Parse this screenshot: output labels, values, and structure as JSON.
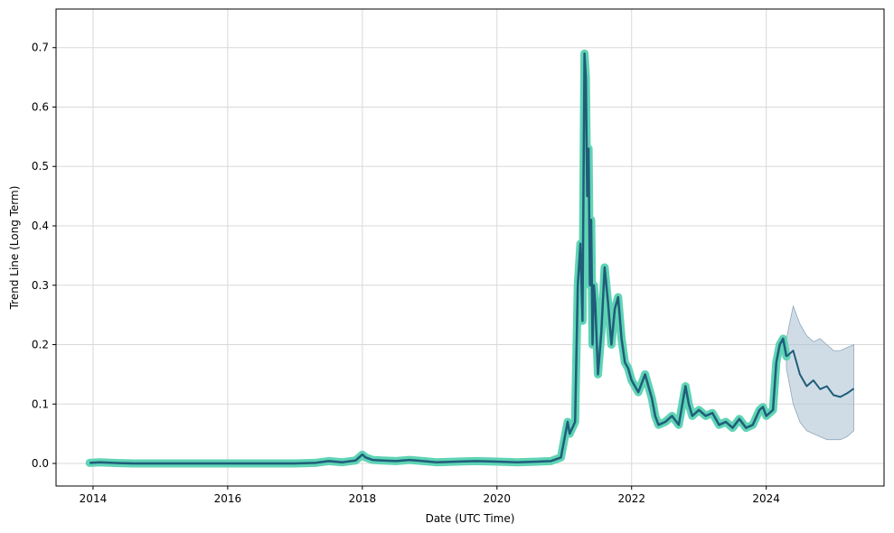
{
  "chart_data": {
    "type": "line",
    "title": "",
    "xlabel": "Date (UTC Time)",
    "ylabel": "Trend Line (Long Term)",
    "xlim": [
      2013.45,
      2025.75
    ],
    "ylim": [
      -0.038,
      0.765
    ],
    "grid": true,
    "legend": "none",
    "x_ticks": [
      2014,
      2016,
      2018,
      2020,
      2022,
      2024
    ],
    "x_tick_labels": [
      "2014",
      "2016",
      "2018",
      "2020",
      "2022",
      "2024"
    ],
    "y_ticks": [
      0.0,
      0.1,
      0.2,
      0.3,
      0.4,
      0.5,
      0.6,
      0.7
    ],
    "y_tick_labels": [
      "0.0",
      "0.1",
      "0.2",
      "0.3",
      "0.4",
      "0.5",
      "0.6",
      "0.7"
    ],
    "colors": {
      "actual_halo": "#5fd4b5",
      "actual_line": "#1f5d7a",
      "forecast_line": "#1f5d7a",
      "forecast_band": "#a9bfd0",
      "grid": "#d9d9d9"
    },
    "series": [
      {
        "kind": "actual",
        "x": [
          2013.95,
          2014.1,
          2014.3,
          2014.6,
          2015.0,
          2016.0,
          2017.0,
          2017.3,
          2017.5,
          2017.7,
          2017.9,
          2018.0,
          2018.05,
          2018.15,
          2018.3,
          2018.5,
          2018.7,
          2018.9,
          2019.1,
          2019.4,
          2019.7,
          2020.0,
          2020.3,
          2020.6,
          2020.8,
          2020.95,
          2021.05,
          2021.08,
          2021.12,
          2021.16,
          2021.2,
          2021.24,
          2021.27,
          2021.3,
          2021.32,
          2021.34,
          2021.36,
          2021.38,
          2021.4,
          2021.42,
          2021.44,
          2021.46,
          2021.48,
          2021.5,
          2021.55,
          2021.6,
          2021.65,
          2021.7,
          2021.75,
          2021.8,
          2021.85,
          2021.9,
          2021.95,
          2022.0,
          2022.1,
          2022.2,
          2022.3,
          2022.35,
          2022.4,
          2022.5,
          2022.6,
          2022.7,
          2022.8,
          2022.85,
          2022.9,
          2023.0,
          2023.1,
          2023.2,
          2023.3,
          2023.4,
          2023.5,
          2023.6,
          2023.7,
          2023.8,
          2023.9,
          2023.95,
          2024.0,
          2024.05,
          2024.1,
          2024.15,
          2024.2,
          2024.25,
          2024.3
        ],
        "y": [
          0.001,
          0.002,
          0.001,
          0.0,
          0.0,
          0.0,
          0.0,
          0.001,
          0.004,
          0.002,
          0.005,
          0.015,
          0.01,
          0.006,
          0.005,
          0.004,
          0.006,
          0.004,
          0.002,
          0.003,
          0.004,
          0.003,
          0.002,
          0.003,
          0.004,
          0.01,
          0.07,
          0.05,
          0.06,
          0.07,
          0.3,
          0.37,
          0.24,
          0.69,
          0.65,
          0.45,
          0.53,
          0.3,
          0.41,
          0.2,
          0.3,
          0.27,
          0.21,
          0.15,
          0.22,
          0.33,
          0.27,
          0.2,
          0.26,
          0.28,
          0.21,
          0.17,
          0.16,
          0.14,
          0.12,
          0.15,
          0.11,
          0.08,
          0.065,
          0.07,
          0.08,
          0.065,
          0.13,
          0.1,
          0.08,
          0.09,
          0.08,
          0.085,
          0.065,
          0.07,
          0.06,
          0.075,
          0.06,
          0.065,
          0.09,
          0.095,
          0.08,
          0.085,
          0.09,
          0.17,
          0.2,
          0.21,
          0.18
        ]
      },
      {
        "kind": "forecast",
        "x": [
          2024.3,
          2024.4,
          2024.5,
          2024.6,
          2024.7,
          2024.8,
          2024.9,
          2025.0,
          2025.1,
          2025.2,
          2025.3
        ],
        "y": [
          0.18,
          0.19,
          0.15,
          0.13,
          0.14,
          0.125,
          0.13,
          0.115,
          0.112,
          0.118,
          0.126
        ],
        "lower": [
          0.16,
          0.1,
          0.07,
          0.055,
          0.05,
          0.045,
          0.04,
          0.04,
          0.04,
          0.045,
          0.055
        ],
        "upper": [
          0.21,
          0.265,
          0.235,
          0.215,
          0.205,
          0.21,
          0.2,
          0.19,
          0.19,
          0.195,
          0.2
        ]
      }
    ]
  }
}
